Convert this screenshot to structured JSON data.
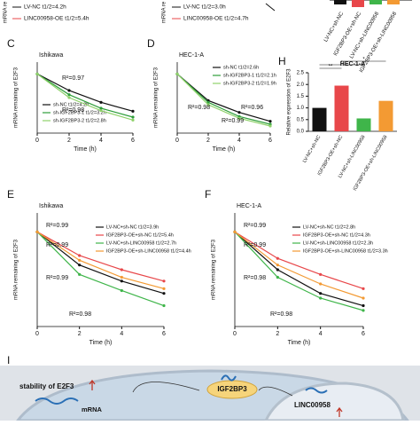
{
  "top_strip": {
    "a_legend": [
      "LV-NC t1/2=4.2h",
      "LINC00958-OE t1/2=5.4h"
    ],
    "a_ylabel": "mRNA re",
    "b_legend": [
      "LV-NC t1/2=3.0h",
      "LINC00958-OE t1/2=4.7h"
    ],
    "b_ylabel": "mRNA re",
    "g_categories": [
      "LV-NC+sh-NC",
      "IGF2BP3-OE+sh-NC",
      "LV-NC+sh-LINC00958",
      "IGF2BP3-OE+sh-LINC00958"
    ]
  },
  "chart_data": [
    {
      "type": "line",
      "panel": "C",
      "title": "Ishikawa",
      "x_label": "Time (h)",
      "y_label": "mRNA remaining of E2F3",
      "x": [
        0,
        2,
        4,
        6
      ],
      "xlim": [
        0,
        6
      ],
      "xticks": [
        0,
        2,
        4,
        6
      ],
      "ylim": [
        0,
        1.2
      ],
      "series": [
        {
          "name": "sh-NC t1/2=4.2h",
          "color": "#111111",
          "values": [
            1,
            0.72,
            0.52,
            0.37
          ]
        },
        {
          "name": "sh-IGF2BP3-1 t1/2=3.2h",
          "color": "#2e9e3a",
          "values": [
            1,
            0.65,
            0.42,
            0.27
          ]
        },
        {
          "name": "sh-IGF2BP3-2 t1/2=2.8h",
          "color": "#8fd16a",
          "values": [
            1,
            0.6,
            0.38,
            0.22
          ]
        }
      ],
      "annotations": [
        "R²=0.97",
        "R²=0.98"
      ],
      "annotation_colors": [
        "#8fd16a",
        "#2e9e3a"
      ]
    },
    {
      "type": "line",
      "panel": "D",
      "title": "HEC-1-A",
      "x_label": "Time (h)",
      "y_label": "mRNA remaining of E2F3",
      "x": [
        0,
        2,
        4,
        6
      ],
      "xlim": [
        0,
        6
      ],
      "xticks": [
        0,
        2,
        4,
        6
      ],
      "ylim": [
        0,
        1.2
      ],
      "series": [
        {
          "name": "sh-NC t1/2=2.6h",
          "color": "#111111",
          "values": [
            1,
            0.55,
            0.35,
            0.2
          ]
        },
        {
          "name": "sh-IGF2BP3-1 t1/2=2.1h",
          "color": "#2e9e3a",
          "values": [
            1,
            0.52,
            0.28,
            0.15
          ]
        },
        {
          "name": "sh-IGF2BP3-2 t1/2=1.9h",
          "color": "#8fd16a",
          "values": [
            1,
            0.48,
            0.25,
            0.12
          ]
        }
      ],
      "annotations": [
        "R²=0.96",
        "R²=0.98",
        "R²=0.99"
      ],
      "annotation_colors": [
        "#111111",
        "#2e9e3a",
        "#2e9e3a"
      ]
    },
    {
      "type": "bar",
      "panel": "H",
      "title": "HEC-1-A",
      "y_label": "Relative expression of E2F3",
      "categories": [
        "LV-NC+sh-NC",
        "IGF2BP3-OE+sh-NC",
        "LV-NC+sh-LINC00958",
        "IGF2BP3-OE+sh-LINC00958"
      ],
      "values": [
        1.0,
        1.95,
        0.55,
        1.3
      ],
      "colors": [
        "#111111",
        "#e8474a",
        "#3fb54a",
        "#f39a33"
      ],
      "ylim": [
        0,
        2.5
      ],
      "yticks": [
        {
          "value": 0,
          "label": "0.0"
        },
        {
          "value": 0.5,
          "label": "0.5"
        },
        {
          "value": 1,
          "label": "1.0"
        },
        {
          "value": 1.5,
          "label": "1.5"
        },
        {
          "value": 2,
          "label": "2.0"
        },
        {
          "value": 2.5,
          "label": "2.5"
        }
      ],
      "annotations": [
        "**",
        "*",
        "*"
      ]
    },
    {
      "type": "line",
      "panel": "E",
      "title": "Ishikawa",
      "x_label": "Time (h)",
      "y_label": "mRNA remaining of E2F3",
      "x": [
        0,
        2,
        4,
        6
      ],
      "xlim": [
        0,
        6
      ],
      "xticks": [
        0,
        2,
        4,
        6
      ],
      "ylim": [
        0,
        1.2
      ],
      "series": [
        {
          "name": "LV-NC+sh-NC t1/2=3.9h",
          "color": "#111111",
          "values": [
            1,
            0.65,
            0.48,
            0.35
          ]
        },
        {
          "name": "IGF2BP3-OE+sh-NC t1/2=5.4h",
          "color": "#e8474a",
          "values": [
            1,
            0.75,
            0.6,
            0.48
          ]
        },
        {
          "name": "LV-NC+sh-LINC00958 t1/2=2.7h",
          "color": "#3fb54a",
          "values": [
            1,
            0.55,
            0.38,
            0.22
          ]
        },
        {
          "name": "IGF2BP3-OE+sh-LINC00958 t1/2=4.4h",
          "color": "#f39a33",
          "values": [
            1,
            0.7,
            0.52,
            0.4
          ]
        }
      ],
      "annotations": [
        "R²=0.99",
        "R²=0.99",
        "R²=0.99",
        "R²=0.98"
      ],
      "annotation_colors": [
        "#e8474a",
        "#f39a33",
        "#111111",
        "#3fb54a"
      ]
    },
    {
      "type": "line",
      "panel": "F",
      "title": "HEC-1-A",
      "x_label": "Time (h)",
      "y_label": "mRNA remaining of E2F3",
      "x": [
        0,
        2,
        4,
        6
      ],
      "xlim": [
        0,
        6
      ],
      "xticks": [
        0,
        2,
        4,
        6
      ],
      "ylim": [
        0,
        1.2
      ],
      "series": [
        {
          "name": "LV-NC+sh-NC t1/2=2.8h",
          "color": "#111111",
          "values": [
            1,
            0.6,
            0.35,
            0.22
          ]
        },
        {
          "name": "IGF2BP3-OE+sh-NC t1/2=4.3h",
          "color": "#e8474a",
          "values": [
            1,
            0.72,
            0.55,
            0.4
          ]
        },
        {
          "name": "LV-NC+sh-LINC00958 t1/2=2.3h",
          "color": "#3fb54a",
          "values": [
            1,
            0.52,
            0.3,
            0.17
          ]
        },
        {
          "name": "IGF2BP3-OE+sh-LINC00958 t1/2=3.3h",
          "color": "#f39a33",
          "values": [
            1,
            0.65,
            0.45,
            0.3
          ]
        }
      ],
      "annotations": [
        "R²=0.99",
        "R²=0.99",
        "R²=0.98",
        "R²=0.98"
      ],
      "annotation_colors": [
        "#e8474a",
        "#f39a33",
        "#111111",
        "#3fb54a"
      ]
    }
  ],
  "diagram": {
    "panel": "I",
    "protein": "IGF2BP3",
    "stability": "stability of E2F3",
    "mrna": "mRNA",
    "lncrna": "LINC00958"
  }
}
